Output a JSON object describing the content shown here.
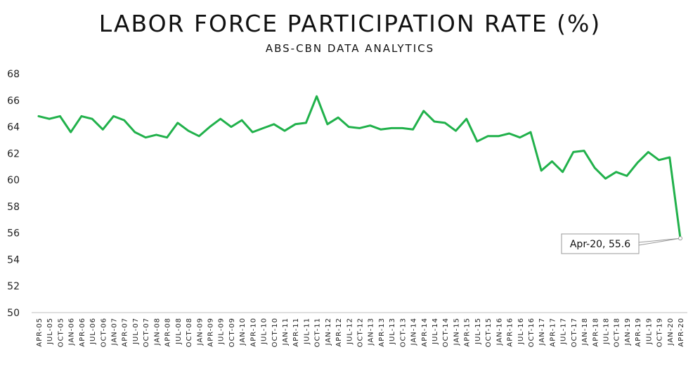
{
  "chart_data": {
    "type": "line",
    "title": "LABOR FORCE PARTICIPATION RATE (%)",
    "subtitle": "ABS-CBN DATA ANALYTICS",
    "xlabel": "",
    "ylabel": "",
    "ylim": [
      50,
      68
    ],
    "yticks": [
      50,
      52,
      54,
      56,
      58,
      60,
      62,
      64,
      66,
      68
    ],
    "grid": false,
    "legend": "none",
    "line_color": "#21b14b",
    "categories": [
      "APR-05",
      "JUL-05",
      "OCT-05",
      "JAN-06",
      "APR-06",
      "JUL-06",
      "OCT-06",
      "JAN-07",
      "APR-07",
      "JUL-07",
      "OCT-07",
      "JAN-08",
      "APR-08",
      "JUL-08",
      "OCT-08",
      "JAN-09",
      "APR-09",
      "JUL-09",
      "OCT-09",
      "JAN-10",
      "APR-10",
      "JUL-10",
      "OCT-10",
      "JAN-11",
      "APR-11",
      "JUL-11",
      "OCT-11",
      "JAN-12",
      "APR-12",
      "JUL-12",
      "OCT-12",
      "JAN-13",
      "APR-13",
      "JUL-13",
      "OCT-13",
      "JAN-14",
      "APR-14",
      "JUL-14",
      "OCT-14",
      "JAN-15",
      "APR-15",
      "JUL-15",
      "OCT-15",
      "JAN-16",
      "APR-16",
      "JUL-16",
      "OCT-16",
      "JAN-17",
      "APR-17",
      "JUL-17",
      "OCT-17",
      "JAN-18",
      "APR-18",
      "JUL-18",
      "OCT-18",
      "JAN-19",
      "APR-19",
      "JUL-19",
      "OCT-19",
      "JAN-20",
      "APR-20"
    ],
    "values": [
      64.8,
      64.6,
      64.8,
      63.6,
      64.8,
      64.6,
      63.8,
      64.8,
      64.5,
      63.6,
      63.2,
      63.4,
      63.2,
      64.3,
      63.7,
      63.3,
      64.0,
      64.6,
      64.0,
      64.5,
      63.6,
      63.9,
      64.2,
      63.7,
      64.2,
      64.3,
      66.3,
      64.2,
      64.7,
      64.0,
      63.9,
      64.1,
      63.8,
      63.9,
      63.9,
      63.8,
      65.2,
      64.4,
      64.3,
      63.7,
      64.6,
      62.9,
      63.3,
      63.3,
      63.5,
      63.2,
      63.6,
      60.7,
      61.4,
      60.6,
      62.1,
      62.2,
      60.9,
      60.1,
      60.6,
      60.3,
      61.3,
      62.1,
      61.5,
      61.7,
      55.6
    ],
    "annotation": {
      "index": 60,
      "text": "Apr-20, 55.6"
    }
  }
}
